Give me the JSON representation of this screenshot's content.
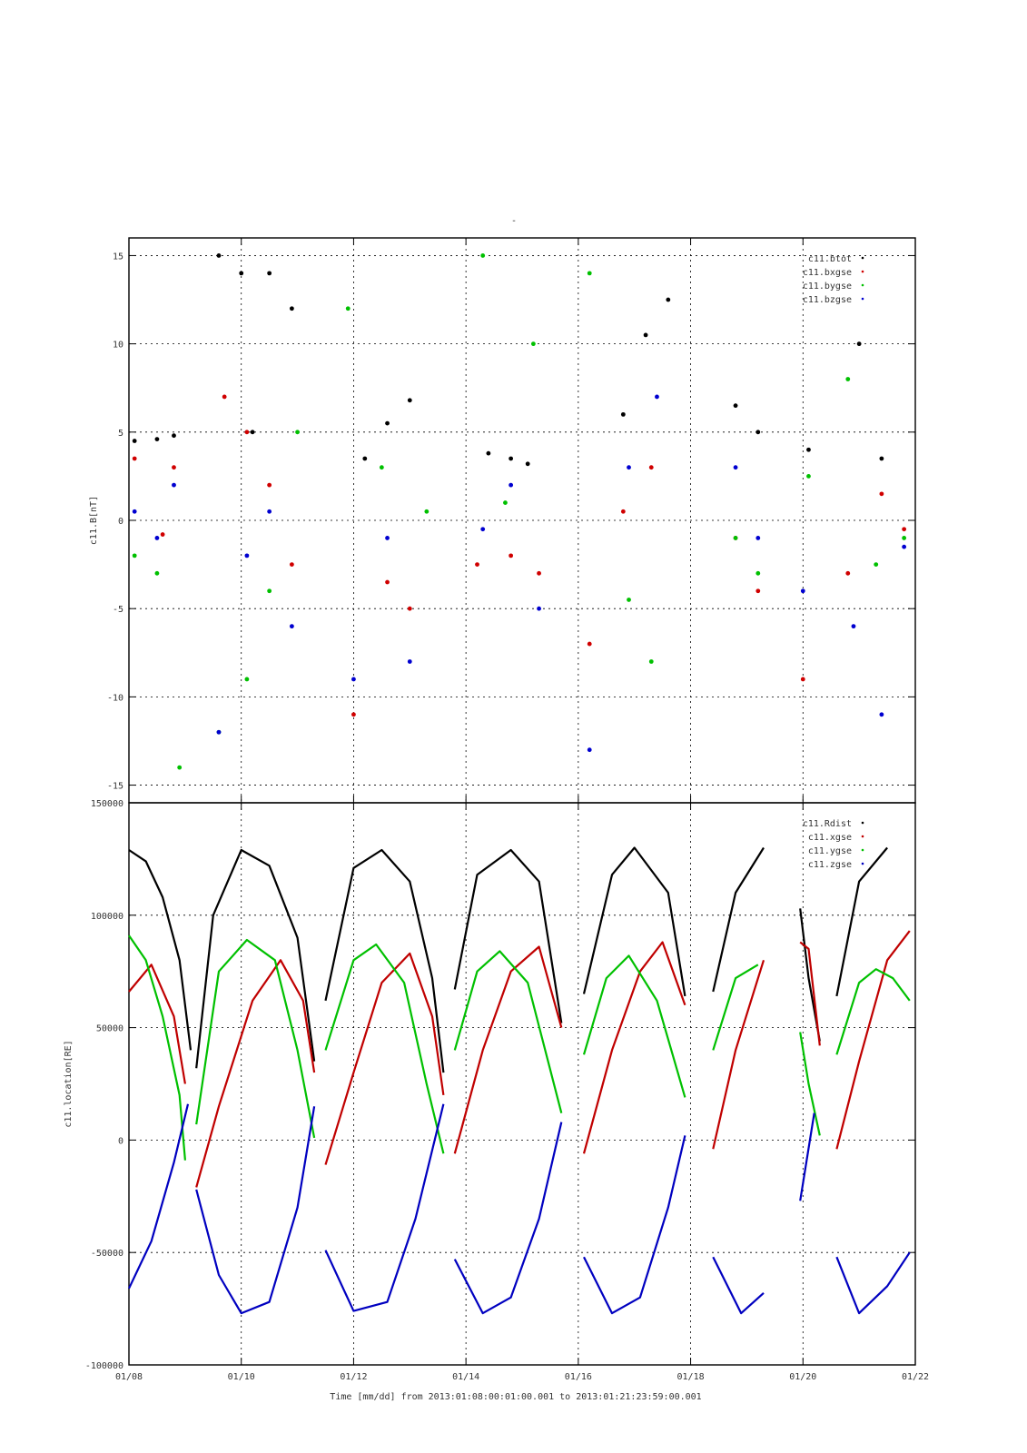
{
  "page": {
    "top_mark": "-"
  },
  "x_axis": {
    "ticks": [
      "01/08",
      "01/10",
      "01/12",
      "01/14",
      "01/16",
      "01/18",
      "01/20",
      "01/22"
    ],
    "label": "Time [mm/dd]  from 2013:01:08:00:01:00.001  to  2013:01:21:23:59:00.001"
  },
  "chart_data": [
    {
      "type": "scatter",
      "title": "",
      "ylabel": "c11.B[nT]",
      "xlim": [
        "01/08",
        "01/22"
      ],
      "ylim": [
        -16,
        16
      ],
      "yticks": [
        "15",
        "10",
        "5",
        "0",
        "-5",
        "-10",
        "-15"
      ],
      "grid": true,
      "legend_position": "top-right",
      "series": [
        {
          "name": "c11.btot",
          "color": "#000000",
          "values": [
            [
              8.1,
              4.5
            ],
            [
              8.5,
              4.6
            ],
            [
              8.8,
              4.8
            ],
            [
              9.6,
              15
            ],
            [
              10.0,
              14
            ],
            [
              10.2,
              5.0
            ],
            [
              10.5,
              14
            ],
            [
              10.9,
              12
            ],
            [
              12.2,
              3.5
            ],
            [
              12.6,
              5.5
            ],
            [
              13.0,
              6.8
            ],
            [
              14.4,
              3.8
            ],
            [
              14.8,
              3.5
            ],
            [
              15.1,
              3.2
            ],
            [
              16.8,
              6.0
            ],
            [
              17.2,
              10.5
            ],
            [
              17.6,
              12.5
            ],
            [
              18.8,
              6.5
            ],
            [
              19.2,
              5.0
            ],
            [
              20.1,
              4.0
            ],
            [
              21.0,
              10.0
            ],
            [
              21.4,
              3.5
            ]
          ]
        },
        {
          "name": "c11.bxgse",
          "color": "#d00000",
          "values": [
            [
              8.1,
              3.5
            ],
            [
              8.6,
              -0.8
            ],
            [
              8.8,
              3.0
            ],
            [
              9.7,
              7.0
            ],
            [
              10.1,
              5.0
            ],
            [
              10.5,
              2.0
            ],
            [
              10.9,
              -2.5
            ],
            [
              12.0,
              -11.0
            ],
            [
              12.6,
              -3.5
            ],
            [
              13.0,
              -5.0
            ],
            [
              14.2,
              -2.5
            ],
            [
              14.8,
              -2.0
            ],
            [
              15.3,
              -3.0
            ],
            [
              16.2,
              -7.0
            ],
            [
              16.8,
              0.5
            ],
            [
              17.3,
              3.0
            ],
            [
              18.8,
              -1.0
            ],
            [
              19.2,
              -4.0
            ],
            [
              20.0,
              -9.0
            ],
            [
              20.8,
              -3.0
            ],
            [
              21.4,
              1.5
            ],
            [
              21.8,
              -0.5
            ]
          ]
        },
        {
          "name": "c11.bygse",
          "color": "#00c000",
          "values": [
            [
              8.1,
              -2.0
            ],
            [
              8.5,
              -3.0
            ],
            [
              8.9,
              -14.0
            ],
            [
              9.6,
              -12.0
            ],
            [
              10.1,
              -9.0
            ],
            [
              10.5,
              -4.0
            ],
            [
              11.0,
              5.0
            ],
            [
              11.9,
              12.0
            ],
            [
              12.5,
              3.0
            ],
            [
              13.3,
              0.5
            ],
            [
              14.3,
              15.0
            ],
            [
              14.7,
              1.0
            ],
            [
              15.2,
              10.0
            ],
            [
              16.2,
              14.0
            ],
            [
              16.9,
              -4.5
            ],
            [
              17.3,
              -8.0
            ],
            [
              18.8,
              -1.0
            ],
            [
              19.2,
              -3.0
            ],
            [
              20.1,
              2.5
            ],
            [
              20.8,
              8.0
            ],
            [
              21.3,
              -2.5
            ],
            [
              21.8,
              -1.0
            ]
          ]
        },
        {
          "name": "c11.bzgse",
          "color": "#0000d0",
          "values": [
            [
              8.1,
              0.5
            ],
            [
              8.5,
              -1.0
            ],
            [
              8.8,
              2.0
            ],
            [
              9.6,
              -12.0
            ],
            [
              10.1,
              -2.0
            ],
            [
              10.5,
              0.5
            ],
            [
              10.9,
              -6.0
            ],
            [
              12.0,
              -9.0
            ],
            [
              12.6,
              -1.0
            ],
            [
              13.0,
              -8.0
            ],
            [
              14.3,
              -0.5
            ],
            [
              14.8,
              2.0
            ],
            [
              15.3,
              -5.0
            ],
            [
              16.2,
              -13.0
            ],
            [
              16.9,
              3.0
            ],
            [
              17.4,
              7.0
            ],
            [
              18.8,
              3.0
            ],
            [
              19.2,
              -1.0
            ],
            [
              20.0,
              -4.0
            ],
            [
              20.9,
              -6.0
            ],
            [
              21.4,
              -11.0
            ],
            [
              21.8,
              -1.5
            ]
          ]
        }
      ]
    },
    {
      "type": "line",
      "title": "",
      "ylabel": "c11.location[RE]",
      "xlim": [
        "01/08",
        "01/22"
      ],
      "ylim": [
        -100000,
        150000
      ],
      "yticks": [
        "150000",
        "100000",
        "50000",
        "0",
        "-50000",
        "-100000"
      ],
      "grid": true,
      "legend_position": "top-right",
      "series": [
        {
          "name": "c11.Rdist",
          "color": "#000000",
          "segments": [
            [
              [
                8.0,
                129000
              ],
              [
                8.3,
                124000
              ],
              [
                8.6,
                108000
              ],
              [
                8.9,
                80000
              ],
              [
                9.1,
                40000
              ]
            ],
            [
              [
                9.2,
                32000
              ],
              [
                9.5,
                100000
              ],
              [
                10.0,
                129000
              ],
              [
                10.5,
                122000
              ],
              [
                11.0,
                90000
              ],
              [
                11.3,
                35000
              ]
            ],
            [
              [
                11.5,
                62000
              ],
              [
                12.0,
                121000
              ],
              [
                12.5,
                129000
              ],
              [
                13.0,
                115000
              ],
              [
                13.4,
                72000
              ],
              [
                13.6,
                30000
              ]
            ],
            [
              [
                13.8,
                67000
              ],
              [
                14.2,
                118000
              ],
              [
                14.8,
                129000
              ],
              [
                15.3,
                115000
              ],
              [
                15.7,
                52000
              ]
            ],
            [
              [
                16.1,
                65000
              ],
              [
                16.6,
                118000
              ],
              [
                17.0,
                130000
              ],
              [
                17.6,
                110000
              ],
              [
                17.9,
                64000
              ]
            ],
            [
              [
                18.4,
                66000
              ],
              [
                18.8,
                110000
              ],
              [
                19.3,
                130000
              ]
            ],
            [
              [
                19.95,
                103000
              ],
              [
                20.1,
                72000
              ],
              [
                20.3,
                44000
              ]
            ],
            [
              [
                20.6,
                64000
              ],
              [
                21.0,
                115000
              ],
              [
                21.5,
                130000
              ]
            ]
          ]
        },
        {
          "name": "c11.xgse",
          "color": "#c00000",
          "segments": [
            [
              [
                8.0,
                66000
              ],
              [
                8.4,
                78000
              ],
              [
                8.8,
                55000
              ],
              [
                9.0,
                25000
              ]
            ],
            [
              [
                9.2,
                -21000
              ],
              [
                9.6,
                15000
              ],
              [
                10.2,
                62000
              ],
              [
                10.7,
                80000
              ],
              [
                11.1,
                62000
              ],
              [
                11.3,
                30000
              ]
            ],
            [
              [
                11.5,
                -11000
              ],
              [
                12.0,
                30000
              ],
              [
                12.5,
                70000
              ],
              [
                13.0,
                83000
              ],
              [
                13.4,
                55000
              ],
              [
                13.6,
                20000
              ]
            ],
            [
              [
                13.8,
                -6000
              ],
              [
                14.3,
                40000
              ],
              [
                14.8,
                75000
              ],
              [
                15.3,
                86000
              ],
              [
                15.7,
                50000
              ]
            ],
            [
              [
                16.1,
                -6000
              ],
              [
                16.6,
                40000
              ],
              [
                17.1,
                75000
              ],
              [
                17.5,
                88000
              ],
              [
                17.9,
                60000
              ]
            ],
            [
              [
                18.4,
                -4000
              ],
              [
                18.8,
                40000
              ],
              [
                19.3,
                80000
              ]
            ],
            [
              [
                19.95,
                88000
              ],
              [
                20.1,
                85000
              ],
              [
                20.3,
                42000
              ]
            ],
            [
              [
                20.6,
                -4000
              ],
              [
                21.0,
                35000
              ],
              [
                21.5,
                80000
              ],
              [
                21.9,
                93000
              ]
            ]
          ]
        },
        {
          "name": "c11.ygse",
          "color": "#00c000",
          "segments": [
            [
              [
                8.0,
                91000
              ],
              [
                8.3,
                80000
              ],
              [
                8.6,
                55000
              ],
              [
                8.9,
                20000
              ],
              [
                9.0,
                -9000
              ]
            ],
            [
              [
                9.2,
                7000
              ],
              [
                9.6,
                75000
              ],
              [
                10.1,
                89000
              ],
              [
                10.6,
                80000
              ],
              [
                11.0,
                40000
              ],
              [
                11.3,
                1000
              ]
            ],
            [
              [
                11.5,
                40000
              ],
              [
                12.0,
                80000
              ],
              [
                12.4,
                87000
              ],
              [
                12.9,
                70000
              ],
              [
                13.3,
                25000
              ],
              [
                13.6,
                -6000
              ]
            ],
            [
              [
                13.8,
                40000
              ],
              [
                14.2,
                75000
              ],
              [
                14.6,
                84000
              ],
              [
                15.1,
                70000
              ],
              [
                15.7,
                12000
              ]
            ],
            [
              [
                16.1,
                38000
              ],
              [
                16.5,
                72000
              ],
              [
                16.9,
                82000
              ],
              [
                17.4,
                62000
              ],
              [
                17.9,
                19000
              ]
            ],
            [
              [
                18.4,
                40000
              ],
              [
                18.8,
                72000
              ],
              [
                19.2,
                78000
              ]
            ],
            [
              [
                19.95,
                48000
              ],
              [
                20.1,
                25000
              ],
              [
                20.3,
                2000
              ]
            ],
            [
              [
                20.6,
                38000
              ],
              [
                21.0,
                70000
              ],
              [
                21.3,
                76000
              ],
              [
                21.6,
                72000
              ],
              [
                21.9,
                62000
              ]
            ]
          ]
        },
        {
          "name": "c11.zgse",
          "color": "#0000c0",
          "segments": [
            [
              [
                8.0,
                -66000
              ],
              [
                8.4,
                -45000
              ],
              [
                8.8,
                -10000
              ],
              [
                9.05,
                16000
              ]
            ],
            [
              [
                9.2,
                -22000
              ],
              [
                9.6,
                -60000
              ],
              [
                10.0,
                -77000
              ],
              [
                10.5,
                -72000
              ],
              [
                11.0,
                -30000
              ],
              [
                11.3,
                15000
              ]
            ],
            [
              [
                11.5,
                -49000
              ],
              [
                12.0,
                -76000
              ],
              [
                12.6,
                -72000
              ],
              [
                13.1,
                -35000
              ],
              [
                13.6,
                16000
              ]
            ],
            [
              [
                13.8,
                -53000
              ],
              [
                14.3,
                -77000
              ],
              [
                14.8,
                -70000
              ],
              [
                15.3,
                -35000
              ],
              [
                15.7,
                8000
              ]
            ],
            [
              [
                16.1,
                -52000
              ],
              [
                16.6,
                -77000
              ],
              [
                17.1,
                -70000
              ],
              [
                17.6,
                -30000
              ],
              [
                17.9,
                2000
              ]
            ],
            [
              [
                18.4,
                -52000
              ],
              [
                18.9,
                -77000
              ],
              [
                19.3,
                -68000
              ]
            ],
            [
              [
                19.95,
                -27000
              ],
              [
                20.2,
                12000
              ]
            ],
            [
              [
                20.6,
                -52000
              ],
              [
                21.0,
                -77000
              ],
              [
                21.5,
                -65000
              ],
              [
                21.9,
                -50000
              ]
            ]
          ]
        }
      ]
    }
  ]
}
